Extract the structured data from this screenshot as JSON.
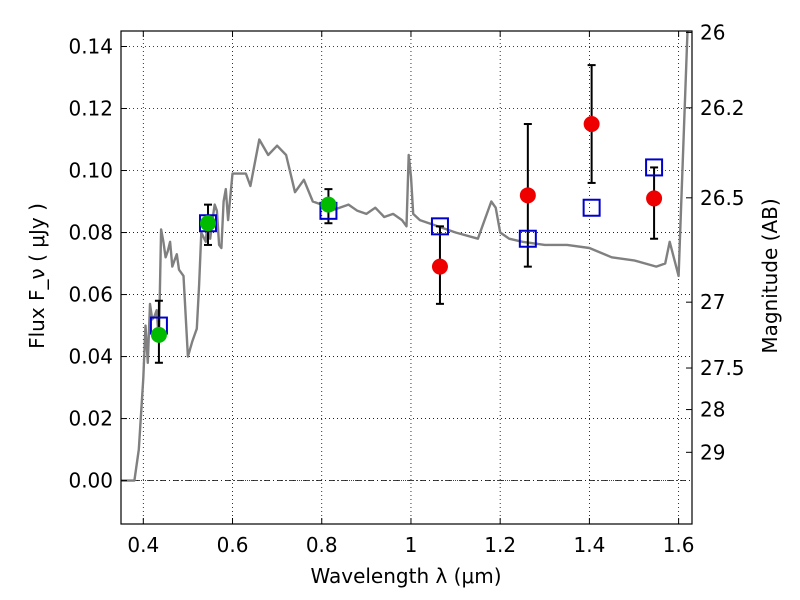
{
  "chart_data": {
    "type": "scatter",
    "xlabel": "Wavelength  λ (μm)",
    "ylabel": "Flux  F_ν  ( μJy )",
    "y2label": "Magnitude (AB)",
    "xlim": [
      0.35,
      1.63
    ],
    "ylim": [
      -0.014,
      0.145
    ],
    "grid": true,
    "x_ticks": [
      0.4,
      0.6,
      0.8,
      1.0,
      1.2,
      1.4,
      1.6
    ],
    "x_tick_labels": [
      "0.4",
      "0.6",
      "0.8",
      "1",
      "1.2",
      "1.4",
      "1.6"
    ],
    "y_ticks": [
      0.0,
      0.02,
      0.04,
      0.06,
      0.08,
      0.1,
      0.12,
      0.14
    ],
    "y_tick_labels": [
      "0.00",
      "0.02",
      "0.04",
      "0.06",
      "0.08",
      "0.10",
      "0.12",
      "0.14"
    ],
    "y2_ticks": [
      26,
      26.2,
      26.5,
      27,
      27.5,
      28,
      29
    ],
    "y2_tick_labels": [
      "26",
      "26.2",
      "26.5",
      "27",
      "27.5",
      "28",
      "29"
    ],
    "series": [
      {
        "style": "line",
        "color": "#808080",
        "x": [
          0.35,
          0.37,
          0.38,
          0.39,
          0.4,
          0.405,
          0.41,
          0.415,
          0.42,
          0.425,
          0.43,
          0.435,
          0.44,
          0.445,
          0.45,
          0.455,
          0.46,
          0.465,
          0.47,
          0.475,
          0.48,
          0.49,
          0.5,
          0.51,
          0.515,
          0.52,
          0.525,
          0.53,
          0.54,
          0.545,
          0.55,
          0.555,
          0.56,
          0.565,
          0.57,
          0.575,
          0.58,
          0.585,
          0.59,
          0.6,
          0.61,
          0.62,
          0.63,
          0.64,
          0.66,
          0.68,
          0.7,
          0.72,
          0.74,
          0.76,
          0.78,
          0.8,
          0.82,
          0.84,
          0.86,
          0.88,
          0.9,
          0.92,
          0.94,
          0.96,
          0.98,
          0.99,
          0.995,
          1.0,
          1.005,
          1.02,
          1.06,
          1.1,
          1.15,
          1.18,
          1.19,
          1.2,
          1.22,
          1.25,
          1.3,
          1.35,
          1.4,
          1.45,
          1.5,
          1.55,
          1.57,
          1.58,
          1.6,
          1.62
        ],
        "y": [
          0.0,
          0.0,
          0.0,
          0.01,
          0.033,
          0.05,
          0.038,
          0.057,
          0.052,
          0.053,
          0.055,
          0.045,
          0.081,
          0.077,
          0.072,
          0.074,
          0.077,
          0.069,
          0.071,
          0.073,
          0.068,
          0.066,
          0.04,
          0.045,
          0.047,
          0.049,
          0.063,
          0.08,
          0.077,
          0.085,
          0.078,
          0.084,
          0.089,
          0.087,
          0.076,
          0.075,
          0.09,
          0.094,
          0.084,
          0.099,
          0.099,
          0.099,
          0.099,
          0.095,
          0.11,
          0.105,
          0.108,
          0.105,
          0.093,
          0.097,
          0.09,
          0.089,
          0.087,
          0.088,
          0.089,
          0.087,
          0.086,
          0.088,
          0.085,
          0.086,
          0.084,
          0.082,
          0.105,
          0.098,
          0.086,
          0.084,
          0.082,
          0.08,
          0.078,
          0.09,
          0.088,
          0.08,
          0.078,
          0.077,
          0.076,
          0.076,
          0.075,
          0.072,
          0.071,
          0.069,
          0.07,
          0.077,
          0.066,
          0.145
        ]
      },
      {
        "style": "open-square",
        "color": "#0000cc",
        "x": [
          0.435,
          0.545,
          0.815,
          1.065,
          1.262,
          1.405,
          1.545
        ],
        "y": [
          0.05,
          0.083,
          0.087,
          0.082,
          0.078,
          0.088,
          0.101
        ]
      },
      {
        "style": "filled-circle",
        "color": "#00bb00",
        "x": [
          0.435,
          0.545,
          0.815
        ],
        "y": [
          0.047,
          0.083,
          0.089
        ]
      },
      {
        "style": "filled-circle",
        "color": "#ee0000",
        "x": [
          1.065,
          1.262,
          1.405,
          1.545
        ],
        "y": [
          0.069,
          0.092,
          0.115,
          0.091
        ]
      },
      {
        "style": "errorbar",
        "color": "#000000",
        "x": [
          0.435,
          0.545,
          0.815,
          1.065,
          1.262,
          1.405,
          1.545
        ],
        "ylow": [
          0.038,
          0.076,
          0.083,
          0.057,
          0.069,
          0.096,
          0.078
        ],
        "yhigh": [
          0.058,
          0.089,
          0.094,
          0.082,
          0.115,
          0.134,
          0.101
        ]
      }
    ]
  }
}
